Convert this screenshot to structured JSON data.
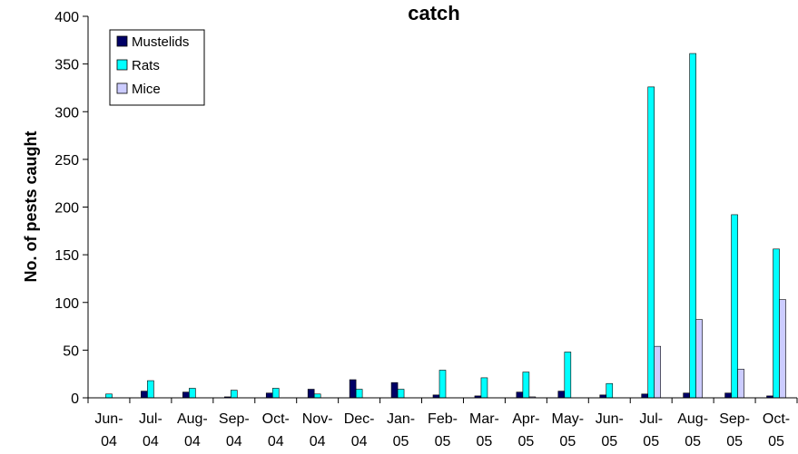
{
  "chart_data": {
    "type": "bar",
    "title": "catch",
    "xlabel": "",
    "ylabel": "No. of pests caught",
    "ylim": [
      0,
      400
    ],
    "yticks": [
      0,
      50,
      100,
      150,
      200,
      250,
      300,
      350,
      400
    ],
    "grid": false,
    "legend_position": "top-left",
    "categories": [
      [
        "Jun-",
        "04"
      ],
      [
        "Jul-",
        "04"
      ],
      [
        "Aug-",
        "04"
      ],
      [
        "Sep-",
        "04"
      ],
      [
        "Oct-",
        "04"
      ],
      [
        "Nov-",
        "04"
      ],
      [
        "Dec-",
        "04"
      ],
      [
        "Jan-",
        "05"
      ],
      [
        "Feb-",
        "05"
      ],
      [
        "Mar-",
        "05"
      ],
      [
        "Apr-",
        "05"
      ],
      [
        "May-",
        "05"
      ],
      [
        "Jun-",
        "05"
      ],
      [
        "Jul-",
        "05"
      ],
      [
        "Aug-",
        "05"
      ],
      [
        "Sep-",
        "05"
      ],
      [
        "Oct-",
        "05"
      ]
    ],
    "series": [
      {
        "name": "Mustelids",
        "color": "#000066",
        "values": [
          0,
          7,
          6,
          1,
          5,
          9,
          19,
          16,
          3,
          2,
          6,
          7,
          3,
          4,
          5,
          5,
          2
        ]
      },
      {
        "name": "Rats",
        "color": "#00ffff",
        "values": [
          4,
          18,
          10,
          8,
          10,
          4,
          9,
          9,
          29,
          21,
          27,
          48,
          15,
          326,
          361,
          192,
          156
        ]
      },
      {
        "name": "Mice",
        "color": "#ccccff",
        "values": [
          0,
          0,
          0,
          0,
          0,
          0,
          0,
          0,
          0,
          0,
          1,
          0,
          0,
          54,
          82,
          30,
          103
        ]
      }
    ]
  }
}
